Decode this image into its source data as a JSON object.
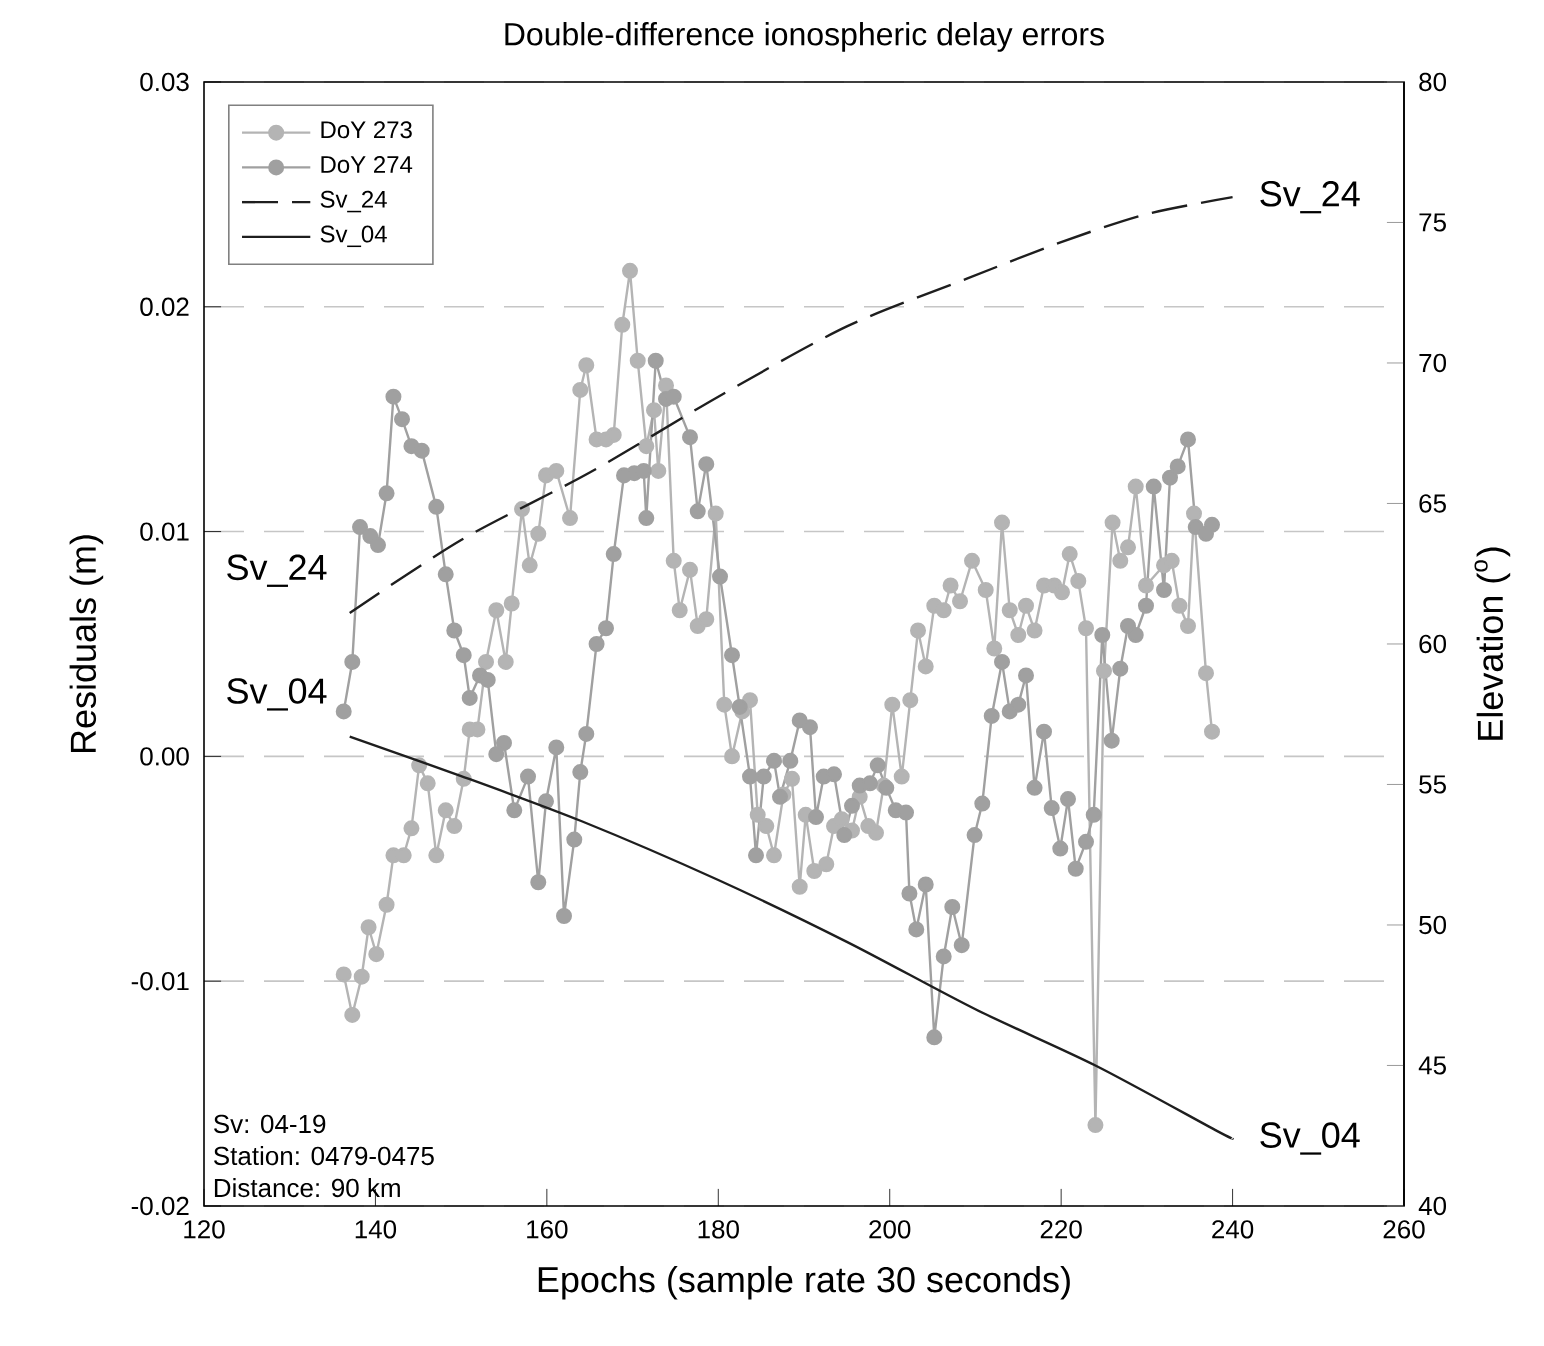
{
  "chart_data": {
    "type": "line",
    "title": "Double-difference ionospheric delay errors",
    "xlabel": "Epochs (sample rate 30 seconds)",
    "ylabel": "Residuals (m)",
    "y2label": "Elevation ($^{o}$)",
    "xlim": [
      120,
      260
    ],
    "xticks": [
      120,
      140,
      160,
      180,
      200,
      220,
      240,
      260
    ],
    "ylim": [
      -0.02,
      0.03
    ],
    "yticks": [
      -0.02,
      -0.01,
      {
        "value": 0,
        "label": "0.00"
      },
      0.01,
      0.02,
      0.03
    ],
    "y2lim": [
      40,
      80
    ],
    "y2ticks": [
      40,
      45,
      50,
      55,
      60,
      65,
      70,
      75,
      80
    ],
    "grid": "y",
    "legend": "top left",
    "series": [
      {
        "name": "DoY 273",
        "color": "#b4b4b4",
        "marker": "circle",
        "line_style": "solid",
        "x": [
          136.3,
          137.3,
          138.4,
          139.2,
          140.1,
          141.3,
          142.1,
          143.3,
          144.2,
          145.1,
          146.1,
          147.1,
          148.2,
          149.2,
          150.3,
          151.0,
          151.9,
          152.9,
          154.1,
          155.2,
          155.9,
          157.1,
          158.0,
          159.0,
          159.9,
          161.1,
          162.7,
          163.9,
          164.6,
          165.8,
          166.9,
          167.8,
          168.8,
          169.7,
          170.6,
          171.6,
          172.5,
          173.0,
          173.9,
          174.8,
          175.5,
          176.7,
          177.6,
          178.6,
          179.7,
          180.7,
          181.6,
          182.8,
          183.7,
          184.6,
          185.6,
          186.5,
          187.6,
          188.6,
          189.5,
          190.2,
          191.2,
          192.6,
          193.5,
          194.4,
          195.6,
          196.5,
          197.5,
          198.4,
          199.3,
          200.3,
          201.4,
          202.4,
          203.3,
          204.2,
          205.2,
          206.3,
          207.1,
          208.2,
          209.6,
          211.2,
          212.2,
          213.1,
          214.0,
          215.0,
          215.9,
          216.9,
          218.0,
          219.2,
          220.1,
          221.0,
          222.0,
          222.9,
          224.0,
          225.0,
          226.0,
          226.9,
          227.8,
          228.7,
          229.9,
          232.0,
          232.9,
          233.8,
          234.8,
          235.5,
          236.9,
          237.6
        ],
        "values": [
          -0.0097,
          -0.0115,
          -0.0098,
          -0.0076,
          -0.0088,
          -0.0066,
          -0.0044,
          -0.0044,
          -0.0032,
          -0.0004,
          -0.0012,
          -0.0044,
          -0.0024,
          -0.0031,
          -0.001,
          0.0012,
          0.0012,
          0.0042,
          0.0065,
          0.0042,
          0.0068,
          0.011,
          0.0085,
          0.0099,
          0.0125,
          0.0127,
          0.0106,
          0.0163,
          0.0174,
          0.0141,
          0.0141,
          0.0143,
          0.0192,
          0.0216,
          0.0176,
          0.0138,
          0.0154,
          0.0127,
          0.0165,
          0.0087,
          0.0065,
          0.0083,
          0.0058,
          0.0061,
          0.0108,
          0.0023,
          0.0,
          0.002,
          0.0025,
          -0.0026,
          -0.0031,
          -0.0044,
          -0.0017,
          -0.001,
          -0.0058,
          -0.0026,
          -0.0051,
          -0.0048,
          -0.0031,
          -0.0028,
          -0.0033,
          -0.0018,
          -0.0031,
          -0.0034,
          -0.0013,
          0.0023,
          -0.0009,
          0.0025,
          0.0056,
          0.004,
          0.0067,
          0.0065,
          0.0076,
          0.0069,
          0.0087,
          0.0074,
          0.0048,
          0.0104,
          0.0065,
          0.0054,
          0.0067,
          0.0056,
          0.0076,
          0.0076,
          0.0073,
          0.009,
          0.0078,
          0.0057,
          -0.0164,
          0.0038,
          0.0104,
          0.0087,
          0.0093,
          0.012,
          0.0076,
          0.0085,
          0.0087,
          0.0067,
          0.0058,
          0.0108,
          0.0037,
          0.0011
        ]
      },
      {
        "name": "DoY 274",
        "color": "#a0a0a0",
        "marker": "circle",
        "line_style": "solid",
        "x": [
          136.3,
          137.3,
          138.2,
          139.4,
          140.3,
          141.3,
          142.1,
          143.1,
          144.2,
          145.4,
          147.1,
          148.2,
          149.2,
          150.3,
          151.0,
          152.2,
          153.1,
          154.1,
          155.0,
          156.2,
          157.8,
          159.0,
          159.9,
          161.1,
          162.0,
          163.2,
          163.9,
          164.6,
          165.8,
          166.9,
          167.8,
          169.0,
          170.2,
          171.3,
          171.6,
          172.7,
          173.9,
          174.8,
          176.7,
          177.6,
          178.6,
          180.2,
          181.6,
          182.5,
          183.7,
          184.4,
          185.3,
          186.5,
          187.2,
          188.4,
          189.5,
          190.7,
          191.4,
          192.3,
          193.5,
          194.7,
          195.6,
          196.5,
          197.7,
          198.6,
          199.6,
          200.7,
          201.9,
          202.3,
          203.1,
          204.2,
          205.2,
          206.3,
          207.3,
          208.4,
          209.9,
          210.8,
          211.9,
          213.1,
          214.0,
          215.0,
          215.9,
          216.9,
          218.0,
          218.9,
          219.9,
          220.8,
          221.7,
          222.9,
          223.8,
          224.8,
          225.9,
          226.9,
          227.8,
          228.7,
          229.9,
          230.8,
          232.0,
          232.7,
          233.6,
          234.8,
          235.7,
          236.9,
          237.6
        ],
        "values": [
          0.002,
          0.0042,
          0.0102,
          0.0098,
          0.0094,
          0.0117,
          0.016,
          0.015,
          0.0138,
          0.0136,
          0.0111,
          0.0081,
          0.0056,
          0.0045,
          0.0026,
          0.0036,
          0.0034,
          0.0001,
          0.0006,
          -0.0024,
          -0.0009,
          -0.0056,
          -0.002,
          0.0004,
          -0.0071,
          -0.0037,
          -0.0007,
          0.001,
          0.005,
          0.0057,
          0.009,
          0.0125,
          0.0126,
          0.0127,
          0.0106,
          0.0176,
          0.0159,
          0.016,
          0.0142,
          0.0109,
          0.013,
          0.008,
          0.0045,
          0.0022,
          -0.0009,
          -0.0044,
          -0.0009,
          -0.0002,
          -0.0018,
          -0.0002,
          0.0016,
          0.0013,
          -0.0027,
          -0.0009,
          -0.0008,
          -0.0035,
          -0.0022,
          -0.0013,
          -0.0012,
          -0.0004,
          -0.0014,
          -0.0024,
          -0.0025,
          -0.0061,
          -0.0077,
          -0.0057,
          -0.0125,
          -0.0089,
          -0.0067,
          -0.0084,
          -0.0035,
          -0.0021,
          0.0018,
          0.0042,
          0.002,
          0.0023,
          0.0036,
          -0.0014,
          0.0011,
          -0.0023,
          -0.0041,
          -0.0019,
          -0.005,
          -0.0038,
          -0.0026,
          0.0054,
          0.0007,
          0.0039,
          0.0058,
          0.0054,
          0.0067,
          0.012,
          0.0074,
          0.0124,
          0.0129,
          0.0141,
          0.0102,
          0.0099,
          0.0103
        ]
      },
      {
        "name": "Sv_24",
        "color": "#1e1e1e",
        "axis": "y2",
        "marker": "none",
        "line_style": "dashed",
        "x": [
          137,
          150,
          165,
          180,
          195,
          209,
          220,
          230,
          240
        ],
        "values": [
          61.1,
          63.7,
          66.1,
          68.8,
          71.3,
          73.0,
          74.3,
          75.3,
          75.9
        ]
      },
      {
        "name": "Sv_04",
        "color": "#1e1e1e",
        "axis": "y2",
        "marker": "none",
        "line_style": "solid",
        "x": [
          137,
          150,
          164,
          180,
          195,
          210,
          224,
          238,
          240
        ],
        "values": [
          56.7,
          55.3,
          53.7,
          51.6,
          49.4,
          47.0,
          45.0,
          42.7,
          42.4
        ]
      }
    ],
    "annotations": [
      "Sv: 04-19",
      "Station: 0479-0475",
      "Distance: 90 km"
    ]
  }
}
